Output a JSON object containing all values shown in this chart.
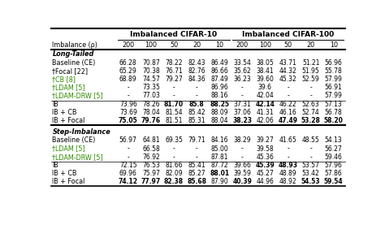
{
  "col_header_1": "Imbalanced CIFAR-10",
  "col_header_2": "Imbalanced CIFAR-100",
  "imbalance_label": "Imbalance (ρ)",
  "imbalance_values": [
    "200",
    "100",
    "50",
    "20",
    "10",
    "200",
    "100",
    "50",
    "20",
    "10"
  ],
  "section1_title": "Long-Tailed",
  "section2_title": "Step-Imbalance",
  "rows": [
    {
      "label": "Baseline (CE)",
      "vals": [
        "66.28",
        "70.87",
        "78.22",
        "82.43",
        "86.49",
        "33.54",
        "38.05",
        "43.71",
        "51.21",
        "56.96"
      ],
      "bold": [
        false,
        false,
        false,
        false,
        false,
        false,
        false,
        false,
        false,
        false
      ],
      "green": false
    },
    {
      "label": "†Focal [22]",
      "vals": [
        "65.29",
        "70.38",
        "76.71",
        "82.76",
        "86.66",
        "35.62",
        "38.41",
        "44.32",
        "51.95",
        "55.78"
      ],
      "bold": [
        false,
        false,
        false,
        false,
        false,
        false,
        false,
        false,
        false,
        false
      ],
      "green": false
    },
    {
      "label": "†CB [8]",
      "vals": [
        "68.89",
        "74.57",
        "79.27",
        "84.36",
        "87.49",
        "36.23",
        "39.60",
        "45.32",
        "52.59",
        "57.99"
      ],
      "bold": [
        false,
        false,
        false,
        false,
        false,
        false,
        false,
        false,
        false,
        false
      ],
      "green": true
    },
    {
      "label": "†LDAM [5]",
      "vals": [
        "-",
        "73.35",
        "-",
        "-",
        "86.96",
        "-",
        "39.6",
        "-",
        "-",
        "56.91"
      ],
      "bold": [
        false,
        false,
        false,
        false,
        false,
        false,
        false,
        false,
        false,
        false
      ],
      "green": true
    },
    {
      "label": "†LDAM-DRW [5]",
      "vals": [
        "-",
        "77.03",
        "-",
        "-",
        "88.16",
        "-",
        "42.04",
        "-",
        "-",
        "57.99"
      ],
      "bold": [
        false,
        false,
        false,
        false,
        false,
        false,
        false,
        false,
        false,
        false
      ],
      "green": true
    },
    {
      "label": "IB",
      "vals": [
        "73.96",
        "78.26",
        "81.70",
        "85.8",
        "88.25",
        "37.31",
        "42.14",
        "46.22",
        "52.63",
        "57.13"
      ],
      "bold": [
        false,
        false,
        true,
        true,
        true,
        false,
        true,
        false,
        false,
        false
      ],
      "green": false
    },
    {
      "label": "IB + CB",
      "vals": [
        "73.69",
        "78.04",
        "81.54",
        "85.42",
        "88.09",
        "37.06",
        "41.31",
        "46.16",
        "52.74",
        "56.78"
      ],
      "bold": [
        false,
        false,
        false,
        false,
        false,
        false,
        false,
        false,
        false,
        false
      ],
      "green": false
    },
    {
      "label": "IB + Focal",
      "vals": [
        "75.05",
        "79.76",
        "81.51",
        "85.31",
        "88.04",
        "38.23",
        "42.06",
        "47.49",
        "53.28",
        "58.20"
      ],
      "bold": [
        true,
        true,
        false,
        false,
        false,
        true,
        false,
        true,
        true,
        true
      ],
      "green": false
    }
  ],
  "rows2": [
    {
      "label": "Baseline (CE)",
      "vals": [
        "56.97",
        "64.81",
        "69.35",
        "79.71",
        "84.16",
        "38.29",
        "39.27",
        "41.65",
        "48.55",
        "54.13"
      ],
      "bold": [
        false,
        false,
        false,
        false,
        false,
        false,
        false,
        false,
        false,
        false
      ],
      "green": false
    },
    {
      "label": "†LDAM [5]",
      "vals": [
        "-",
        "66.58",
        "-",
        "-",
        "85.00",
        "-",
        "39.58",
        "-",
        "-",
        "56.27"
      ],
      "bold": [
        false,
        false,
        false,
        false,
        false,
        false,
        false,
        false,
        false,
        false
      ],
      "green": true
    },
    {
      "label": "†LDAM-DRW [5]",
      "vals": [
        "-",
        "76.92",
        "-",
        "-",
        "87.81",
        "-",
        "45.36",
        "-",
        "-",
        "59.46"
      ],
      "bold": [
        false,
        false,
        false,
        false,
        false,
        false,
        false,
        false,
        false,
        false
      ],
      "green": true
    },
    {
      "label": "IB",
      "vals": [
        "72.15",
        "76.53",
        "81.66",
        "85.41",
        "87.72",
        "39.66",
        "45.39",
        "48.93",
        "53.57",
        "57.96"
      ],
      "bold": [
        false,
        false,
        false,
        false,
        false,
        false,
        true,
        true,
        false,
        false
      ],
      "green": false
    },
    {
      "label": "IB + CB",
      "vals": [
        "69.96",
        "75.97",
        "82.09",
        "85.27",
        "88.01",
        "39.59",
        "45.27",
        "48.89",
        "53.42",
        "57.86"
      ],
      "bold": [
        false,
        false,
        false,
        false,
        true,
        false,
        false,
        false,
        false,
        false
      ],
      "green": false
    },
    {
      "label": "IB + Focal",
      "vals": [
        "74.12",
        "77.97",
        "82.38",
        "85.68",
        "87.90",
        "40.39",
        "44.96",
        "48.92",
        "54.53",
        "59.54"
      ],
      "bold": [
        true,
        true,
        true,
        true,
        false,
        true,
        false,
        false,
        true,
        true
      ],
      "green": false
    }
  ],
  "fig_bg": "#ffffff"
}
